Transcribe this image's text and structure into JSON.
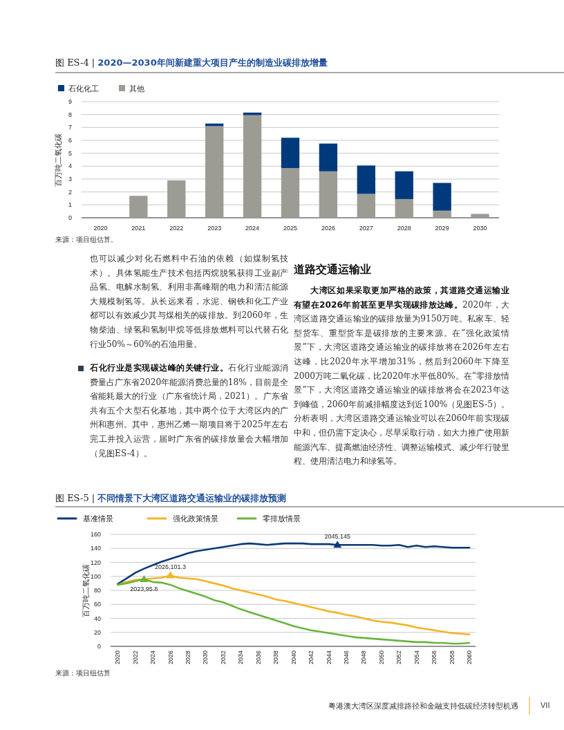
{
  "chart_data": [
    {
      "type": "bar",
      "title": "图 ES-4 | **2020—2030年间新建重大项目产生的制造业碳排放增量**",
      "ylabel": "百万吨二氧化碳",
      "categories": [
        "2020",
        "2021",
        "2022",
        "2023",
        "2024",
        "2025",
        "2026",
        "2027",
        "2028",
        "2029",
        "2030"
      ],
      "stacked": true,
      "series": [
        {
          "name": "其他",
          "color": "#9d9c94",
          "values": [
            0,
            1.7,
            2.9,
            7.1,
            7.95,
            3.85,
            3.6,
            1.85,
            1.45,
            0.55,
            0.3
          ]
        },
        {
          "name": "石化化工",
          "color": "#003a7d",
          "values": [
            0,
            0,
            0,
            0.2,
            0.2,
            2.35,
            2.15,
            2.2,
            2.15,
            2.15,
            0
          ]
        }
      ],
      "ylim": [
        0,
        9
      ],
      "yticks": [
        0,
        1,
        2,
        3,
        4,
        5,
        6,
        7,
        8,
        9
      ],
      "grid": "y",
      "legend": "top left",
      "annotations": [
        "来源：项目组估算。",
        "也可以减少对化石燃料中石油的依赖（如煤制氢技术）。具体氢能生产技术包括丙烷脱氢获得工业副产品氢、电解水制氢、利用非高峰期的电力和清洁能源大规模制氢等。从长远来看，水泥、钢铁和化工产业都可以有效减少其与煤相关的碳排放。到2060年，生物柴油、绿氢和氢制甲烷等低排放燃料可以代替石化行业50%～60%的石油用量。",
        "**石化行业是实现碳达峰的关键行业。**石化行业能源消费量占广东省2020年能源消费总量的18%，目前是全省能耗最大的行业（广东省统计局，2021）。广东省共有五个大型石化基地，其中两个位于大湾区内的广州和惠州。其中，惠州乙烯一期项目将于2025年左右完工并投入运营，届时广东省的碳排放量会大幅增加（见图ES-4）。",
        "道路交通运输业",
        "**大湾区如果采取更加严格的政策，其道路交通运输业有望在2026年前甚至更早实现碳排放达峰。**2020年，大湾区道路交通运输业的碳排放量为9150万吨。私家车、轻型货车、重型货车是碳排放的主要来源。在“强化政策情景”下，大湾区道路交通运输业的碳排放将在2026年左右达峰，比2020年水平增加31%，然后到2060年下降至2000万吨二氧化碳，比2020年水平低80%。在“零排放情景”下，大湾区道路交通运输业的碳排放将会在2023年达到峰值，2060年前减排幅度达到近100%（见图ES-5）。分析表明，大湾区道路交通运输业可以在2060年前实现碳中和，但仍需下定决心，尽早采取行动，如大力推广使用新能源汽车、提高燃油经济性、调整运输模式、减少年行驶里程、使用清洁电力和绿氢等。"
      ]
    },
    {
      "type": "line",
      "title": "图 ES-5 | **不同情景下大湾区道路交通运输业的碳排放预测**",
      "ylabel": "百万吨二氧化碳",
      "x": [
        2020,
        2021,
        2022,
        2023,
        2024,
        2025,
        2026,
        2027,
        2028,
        2029,
        2030,
        2031,
        2032,
        2033,
        2034,
        2035,
        2036,
        2037,
        2038,
        2039,
        2040,
        2041,
        2042,
        2043,
        2044,
        2045,
        2046,
        2047,
        2048,
        2049,
        2050,
        2051,
        2052,
        2053,
        2054,
        2055,
        2056,
        2057,
        2058,
        2059,
        2060
      ],
      "series": [
        {
          "name": "基准情景",
          "color": "#0d3a78",
          "values": [
            89,
            97,
            105,
            111,
            116,
            121,
            125,
            129,
            133,
            136,
            138,
            140,
            142,
            144,
            146,
            147,
            146,
            145,
            146,
            147,
            147,
            147,
            146,
            146,
            146,
            145,
            145,
            145,
            145,
            145,
            144,
            144,
            145,
            142,
            144,
            142,
            143,
            142,
            141,
            141,
            141
          ]
        },
        {
          "name": "强化政策情景",
          "color": "#f5b324",
          "values": [
            88,
            92,
            95,
            96,
            97,
            98,
            101.3,
            98,
            97,
            96,
            93,
            90,
            87,
            83,
            80,
            77,
            74,
            71,
            67,
            65,
            62,
            59,
            56,
            53,
            50,
            48,
            45,
            43,
            40,
            37,
            35,
            34,
            32,
            30,
            27,
            25,
            23,
            21,
            19,
            18,
            17
          ]
        },
        {
          "name": "零排放情景",
          "color": "#6ab43e",
          "values": [
            88,
            90,
            93,
            95.8,
            92,
            91,
            88,
            83,
            79,
            75,
            71,
            66,
            63,
            58,
            53,
            49,
            45,
            41,
            37,
            33,
            29,
            26,
            23,
            21,
            19,
            17,
            15,
            13,
            12,
            11,
            10,
            9,
            8,
            7,
            6,
            6,
            5,
            5,
            4,
            4,
            5
          ]
        }
      ],
      "xlim": [
        2019.2,
        2060.7
      ],
      "xticks": [
        2020,
        2022,
        2024,
        2026,
        2028,
        2030,
        2032,
        2034,
        2036,
        2038,
        2040,
        2042,
        2044,
        2046,
        2048,
        2050,
        2052,
        2054,
        2056,
        2058,
        2060
      ],
      "ylim": [
        0,
        160
      ],
      "yticks": [
        0,
        20,
        40,
        60,
        80,
        100,
        120,
        140,
        160
      ],
      "grid": "y",
      "legend": "top left",
      "line_style": "solid",
      "annotations": [
        {
          "text": "2045,145",
          "x": 2045,
          "y": 145
        },
        {
          "text": "2026,101.3",
          "x": 2026,
          "y": 101.3
        },
        {
          "text": "2023,95.8",
          "x": 2023,
          "y": 95.8
        },
        "来源：项目组估算",
        "粤港澳大湾区深度减排路径和金融支持低碳经济转型机遇",
        "VII"
      ]
    }
  ]
}
